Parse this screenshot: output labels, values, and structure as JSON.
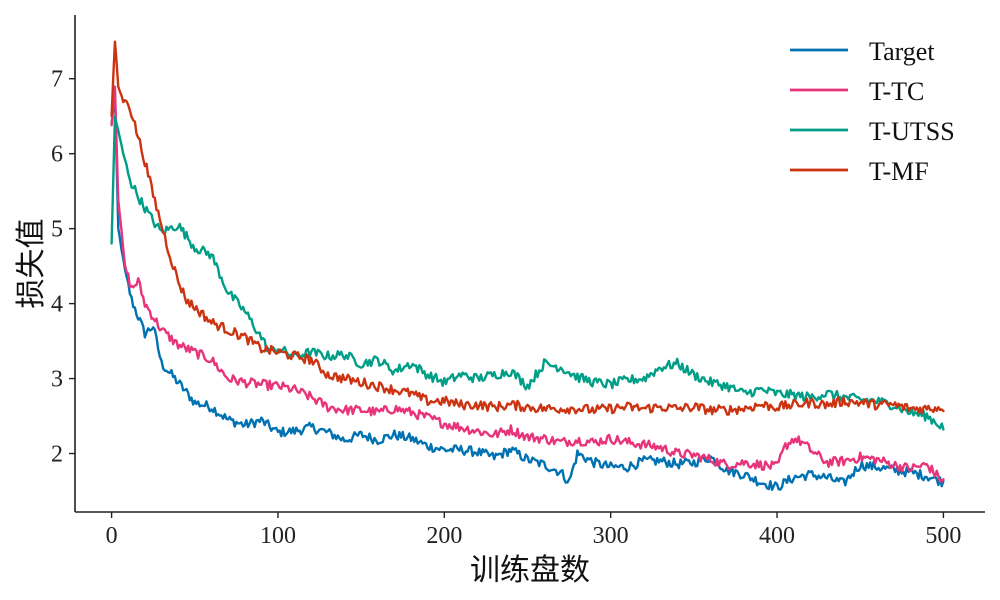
{
  "chart_data": {
    "type": "line",
    "xlabel": "训练盘数",
    "ylabel": "损失值",
    "xlim": [
      -22,
      525
    ],
    "ylim": [
      1.22,
      7.85
    ],
    "xticks": [
      0,
      100,
      200,
      300,
      400,
      500
    ],
    "yticks": [
      2,
      3,
      4,
      5,
      6,
      7
    ],
    "grid": false,
    "legend_position": "top-right",
    "series": [
      {
        "name": "Target",
        "color": "#0072b2",
        "anchors": [
          [
            0,
            6.4
          ],
          [
            2,
            6.8
          ],
          [
            4,
            5.0
          ],
          [
            8,
            4.45
          ],
          [
            12,
            4.05
          ],
          [
            20,
            3.6
          ],
          [
            25,
            3.7
          ],
          [
            30,
            3.2
          ],
          [
            40,
            2.95
          ],
          [
            50,
            2.68
          ],
          [
            60,
            2.62
          ],
          [
            70,
            2.45
          ],
          [
            80,
            2.38
          ],
          [
            90,
            2.44
          ],
          [
            100,
            2.28
          ],
          [
            110,
            2.3
          ],
          [
            120,
            2.35
          ],
          [
            130,
            2.28
          ],
          [
            140,
            2.18
          ],
          [
            150,
            2.25
          ],
          [
            160,
            2.18
          ],
          [
            170,
            2.25
          ],
          [
            180,
            2.2
          ],
          [
            190,
            2.1
          ],
          [
            200,
            2.05
          ],
          [
            210,
            2.05
          ],
          [
            220,
            2.02
          ],
          [
            230,
            1.95
          ],
          [
            240,
            2.05
          ],
          [
            250,
            1.92
          ],
          [
            260,
            1.85
          ],
          [
            270,
            1.75
          ],
          [
            275,
            1.62
          ],
          [
            280,
            2.0
          ],
          [
            290,
            1.88
          ],
          [
            300,
            1.82
          ],
          [
            310,
            1.82
          ],
          [
            320,
            1.9
          ],
          [
            330,
            1.9
          ],
          [
            340,
            1.86
          ],
          [
            350,
            1.88
          ],
          [
            360,
            1.95
          ],
          [
            370,
            1.78
          ],
          [
            380,
            1.72
          ],
          [
            390,
            1.62
          ],
          [
            400,
            1.55
          ],
          [
            410,
            1.68
          ],
          [
            420,
            1.72
          ],
          [
            430,
            1.68
          ],
          [
            440,
            1.6
          ],
          [
            450,
            1.85
          ],
          [
            460,
            1.82
          ],
          [
            470,
            1.78
          ],
          [
            480,
            1.75
          ],
          [
            490,
            1.7
          ],
          [
            500,
            1.62
          ]
        ]
      },
      {
        "name": "T-TC",
        "color": "#e7347a",
        "anchors": [
          [
            0,
            6.4
          ],
          [
            2,
            6.9
          ],
          [
            4,
            5.4
          ],
          [
            8,
            4.5
          ],
          [
            12,
            4.2
          ],
          [
            16,
            4.3
          ],
          [
            20,
            4.0
          ],
          [
            30,
            3.65
          ],
          [
            40,
            3.45
          ],
          [
            50,
            3.35
          ],
          [
            60,
            3.25
          ],
          [
            70,
            3.0
          ],
          [
            80,
            2.95
          ],
          [
            90,
            2.92
          ],
          [
            100,
            2.9
          ],
          [
            110,
            2.85
          ],
          [
            120,
            2.75
          ],
          [
            130,
            2.62
          ],
          [
            140,
            2.58
          ],
          [
            150,
            2.58
          ],
          [
            160,
            2.55
          ],
          [
            170,
            2.6
          ],
          [
            180,
            2.55
          ],
          [
            190,
            2.48
          ],
          [
            200,
            2.4
          ],
          [
            210,
            2.35
          ],
          [
            220,
            2.3
          ],
          [
            230,
            2.25
          ],
          [
            240,
            2.32
          ],
          [
            250,
            2.22
          ],
          [
            260,
            2.2
          ],
          [
            270,
            2.15
          ],
          [
            280,
            2.18
          ],
          [
            290,
            2.15
          ],
          [
            300,
            2.2
          ],
          [
            310,
            2.15
          ],
          [
            320,
            2.12
          ],
          [
            330,
            2.08
          ],
          [
            340,
            2.0
          ],
          [
            350,
            1.98
          ],
          [
            360,
            1.92
          ],
          [
            370,
            1.85
          ],
          [
            380,
            1.88
          ],
          [
            390,
            1.85
          ],
          [
            400,
            1.82
          ],
          [
            405,
            2.1
          ],
          [
            410,
            2.2
          ],
          [
            415,
            2.15
          ],
          [
            420,
            2.05
          ],
          [
            430,
            1.88
          ],
          [
            440,
            1.9
          ],
          [
            450,
            1.95
          ],
          [
            460,
            1.92
          ],
          [
            470,
            1.85
          ],
          [
            480,
            1.8
          ],
          [
            490,
            1.85
          ],
          [
            500,
            1.62
          ]
        ]
      },
      {
        "name": "T-UTSS",
        "color": "#009e87",
        "anchors": [
          [
            0,
            4.8
          ],
          [
            2,
            6.5
          ],
          [
            4,
            6.3
          ],
          [
            7,
            6.0
          ],
          [
            12,
            5.6
          ],
          [
            18,
            5.35
          ],
          [
            25,
            5.1
          ],
          [
            30,
            4.95
          ],
          [
            40,
            5.05
          ],
          [
            50,
            4.75
          ],
          [
            60,
            4.65
          ],
          [
            70,
            4.15
          ],
          [
            80,
            3.9
          ],
          [
            90,
            3.55
          ],
          [
            95,
            3.35
          ],
          [
            100,
            3.4
          ],
          [
            110,
            3.3
          ],
          [
            120,
            3.35
          ],
          [
            130,
            3.3
          ],
          [
            140,
            3.32
          ],
          [
            150,
            3.2
          ],
          [
            160,
            3.25
          ],
          [
            170,
            3.1
          ],
          [
            180,
            3.2
          ],
          [
            190,
            3.05
          ],
          [
            200,
            2.95
          ],
          [
            210,
            3.05
          ],
          [
            220,
            3.0
          ],
          [
            230,
            3.05
          ],
          [
            240,
            3.1
          ],
          [
            250,
            2.9
          ],
          [
            260,
            3.2
          ],
          [
            270,
            3.15
          ],
          [
            280,
            3.02
          ],
          [
            290,
            2.95
          ],
          [
            300,
            2.92
          ],
          [
            310,
            2.98
          ],
          [
            320,
            3.0
          ],
          [
            330,
            3.15
          ],
          [
            340,
            3.2
          ],
          [
            350,
            3.05
          ],
          [
            360,
            2.95
          ],
          [
            370,
            2.9
          ],
          [
            380,
            2.8
          ],
          [
            390,
            2.85
          ],
          [
            400,
            2.8
          ],
          [
            410,
            2.78
          ],
          [
            420,
            2.75
          ],
          [
            430,
            2.8
          ],
          [
            440,
            2.75
          ],
          [
            450,
            2.72
          ],
          [
            460,
            2.7
          ],
          [
            470,
            2.65
          ],
          [
            480,
            2.55
          ],
          [
            490,
            2.5
          ],
          [
            500,
            2.35
          ]
        ]
      },
      {
        "name": "T-MF",
        "color": "#cc3311",
        "anchors": [
          [
            0,
            6.5
          ],
          [
            1,
            7.0
          ],
          [
            2,
            7.5
          ],
          [
            4,
            6.9
          ],
          [
            7,
            6.7
          ],
          [
            10,
            6.7
          ],
          [
            15,
            6.3
          ],
          [
            20,
            5.9
          ],
          [
            25,
            5.45
          ],
          [
            30,
            5.05
          ],
          [
            35,
            4.65
          ],
          [
            40,
            4.3
          ],
          [
            45,
            4.05
          ],
          [
            50,
            3.95
          ],
          [
            60,
            3.75
          ],
          [
            70,
            3.65
          ],
          [
            80,
            3.55
          ],
          [
            90,
            3.4
          ],
          [
            100,
            3.35
          ],
          [
            110,
            3.3
          ],
          [
            120,
            3.25
          ],
          [
            130,
            3.05
          ],
          [
            140,
            3.0
          ],
          [
            150,
            2.95
          ],
          [
            160,
            2.9
          ],
          [
            170,
            2.85
          ],
          [
            180,
            2.8
          ],
          [
            190,
            2.7
          ],
          [
            200,
            2.7
          ],
          [
            210,
            2.65
          ],
          [
            220,
            2.65
          ],
          [
            230,
            2.62
          ],
          [
            240,
            2.65
          ],
          [
            250,
            2.62
          ],
          [
            260,
            2.6
          ],
          [
            270,
            2.6
          ],
          [
            280,
            2.6
          ],
          [
            290,
            2.58
          ],
          [
            300,
            2.6
          ],
          [
            310,
            2.62
          ],
          [
            320,
            2.6
          ],
          [
            330,
            2.62
          ],
          [
            340,
            2.6
          ],
          [
            350,
            2.62
          ],
          [
            360,
            2.58
          ],
          [
            370,
            2.58
          ],
          [
            380,
            2.6
          ],
          [
            390,
            2.65
          ],
          [
            400,
            2.62
          ],
          [
            410,
            2.65
          ],
          [
            420,
            2.68
          ],
          [
            430,
            2.65
          ],
          [
            440,
            2.7
          ],
          [
            450,
            2.68
          ],
          [
            460,
            2.65
          ],
          [
            470,
            2.65
          ],
          [
            480,
            2.6
          ],
          [
            490,
            2.6
          ],
          [
            500,
            2.62
          ]
        ]
      }
    ]
  }
}
